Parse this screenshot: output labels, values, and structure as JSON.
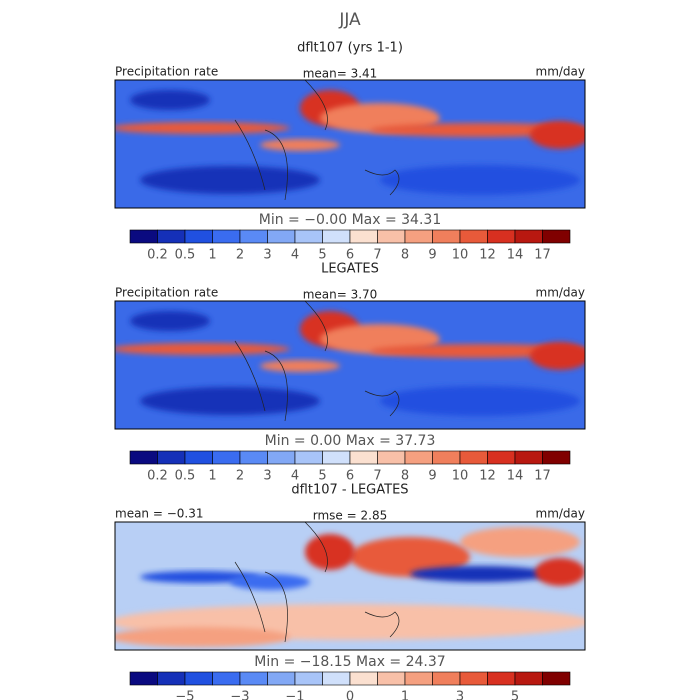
{
  "title": "JJA",
  "panels": [
    {
      "title": "dflt107 (yrs 1-1)",
      "left": "Precipitation rate",
      "stat": "mean=   3.41",
      "unit": "mm/day",
      "range": "Min = −0.00  Max =  34.31",
      "colorbar": {
        "colors": [
          "#0a0a80",
          "#1530b8",
          "#2050e0",
          "#3a6cf0",
          "#5a8af5",
          "#82a8f5",
          "#a8c4f8",
          "#d0e0fb",
          "#fbe0d0",
          "#f8c0a8",
          "#f5a080",
          "#f07f5c",
          "#e85a3a",
          "#d83020",
          "#b81810",
          "#800000"
        ],
        "labels": [
          "0.2",
          "0.5",
          "1",
          "2",
          "3",
          "4",
          "5",
          "6",
          "7",
          "8",
          "9",
          "10",
          "12",
          "14",
          "17"
        ]
      }
    },
    {
      "title": "LEGATES",
      "left": "Precipitation rate",
      "stat": "mean=   3.70",
      "unit": "mm/day",
      "range": "Min =    0.00  Max =  37.73",
      "colorbar": {
        "colors": [
          "#0a0a80",
          "#1530b8",
          "#2050e0",
          "#3a6cf0",
          "#5a8af5",
          "#82a8f5",
          "#a8c4f8",
          "#d0e0fb",
          "#fbe0d0",
          "#f8c0a8",
          "#f5a080",
          "#f07f5c",
          "#e85a3a",
          "#d83020",
          "#b81810",
          "#800000"
        ],
        "labels": [
          "0.2",
          "0.5",
          "1",
          "2",
          "3",
          "4",
          "5",
          "6",
          "7",
          "8",
          "9",
          "10",
          "12",
          "14",
          "17"
        ]
      }
    },
    {
      "title": "dflt107 - LEGATES",
      "left": "mean =   −0.31",
      "stat": "rmse =    2.85",
      "unit": "mm/day",
      "range": "Min = −18.15  Max =  24.37",
      "colorbar": {
        "colors": [
          "#0a0a80",
          "#1530b8",
          "#2050e0",
          "#3a6cf0",
          "#5a8af5",
          "#82a8f5",
          "#a8c4f8",
          "#d0e0fb",
          "#fbe0d0",
          "#f8c0a8",
          "#f5a080",
          "#f07f5c",
          "#e85a3a",
          "#d83020",
          "#b81810",
          "#800000"
        ],
        "labels": [
          "−5",
          "−3",
          "−1",
          "0",
          "1",
          "3",
          "5"
        ]
      }
    }
  ]
}
